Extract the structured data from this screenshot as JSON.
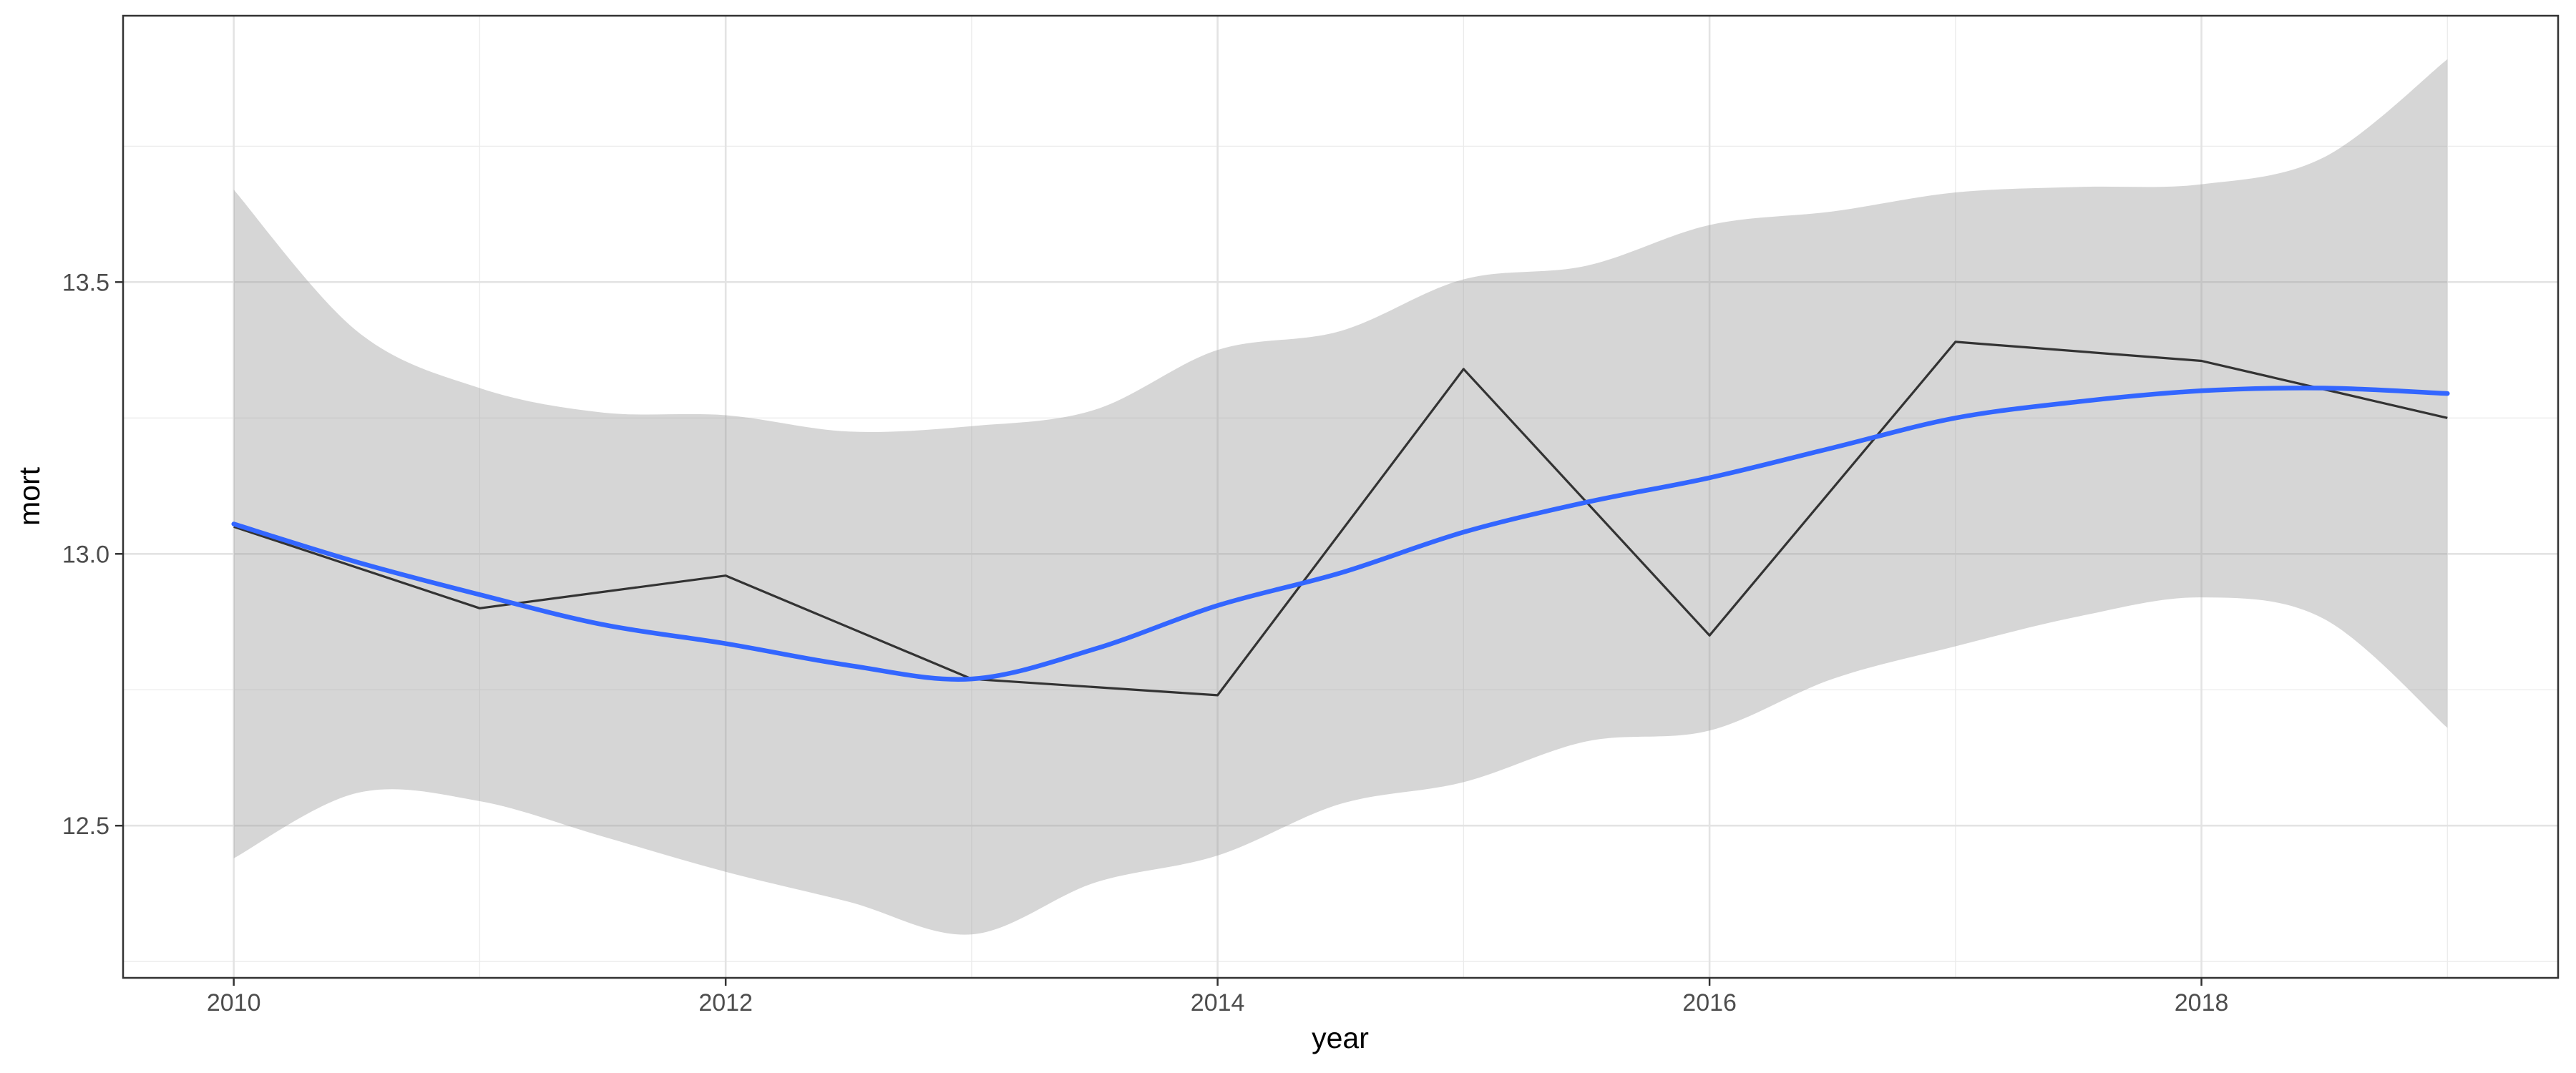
{
  "chart_data": {
    "type": "line",
    "title": "",
    "xlabel": "year",
    "ylabel": "mort",
    "xlim": [
      2009.55,
      2019.45
    ],
    "ylim": [
      12.22,
      13.99
    ],
    "x_ticks": [
      2010,
      2012,
      2014,
      2016,
      2018
    ],
    "x_tick_labels": [
      "2010",
      "2012",
      "2014",
      "2016",
      "2018"
    ],
    "y_ticks": [
      12.5,
      13.0,
      13.5
    ],
    "y_tick_labels": [
      "12.5",
      "13.0",
      "13.5"
    ],
    "x_minor_gridlines": [
      2011,
      2013,
      2015,
      2017,
      2019
    ],
    "y_minor_gridlines": [
      12.25,
      12.75,
      13.25,
      13.75
    ],
    "grid": true,
    "legend": "none",
    "series": [
      {
        "kind": "line",
        "color": "#333333",
        "x": [
          2010,
          2011,
          2012,
          2013,
          2014,
          2015,
          2016,
          2017,
          2018,
          2019
        ],
        "y": [
          13.05,
          12.9,
          12.96,
          12.77,
          12.74,
          13.34,
          12.85,
          13.39,
          13.355,
          13.25
        ]
      },
      {
        "kind": "smooth",
        "color": "#3366FF",
        "band_color": "#999999",
        "x": [
          2010,
          2010.5,
          2011,
          2011.5,
          2012,
          2012.5,
          2013,
          2013.5,
          2014,
          2014.5,
          2015,
          2015.5,
          2016,
          2016.5,
          2017,
          2017.5,
          2018,
          2018.5,
          2019
        ],
        "y": [
          13.055,
          12.985,
          12.925,
          12.87,
          12.835,
          12.795,
          12.77,
          12.825,
          12.905,
          12.965,
          13.04,
          13.095,
          13.14,
          13.195,
          13.25,
          13.28,
          13.3,
          13.305,
          13.295
        ],
        "lower": [
          12.44,
          12.56,
          12.545,
          12.48,
          12.415,
          12.36,
          12.3,
          12.395,
          12.445,
          12.54,
          12.58,
          12.655,
          12.675,
          12.77,
          12.83,
          12.885,
          12.92,
          12.88,
          12.68
        ],
        "upper": [
          13.67,
          13.41,
          13.305,
          13.26,
          13.255,
          13.225,
          13.235,
          13.265,
          13.375,
          13.41,
          13.505,
          13.53,
          13.605,
          13.63,
          13.665,
          13.675,
          13.68,
          13.73,
          13.91
        ]
      }
    ]
  }
}
